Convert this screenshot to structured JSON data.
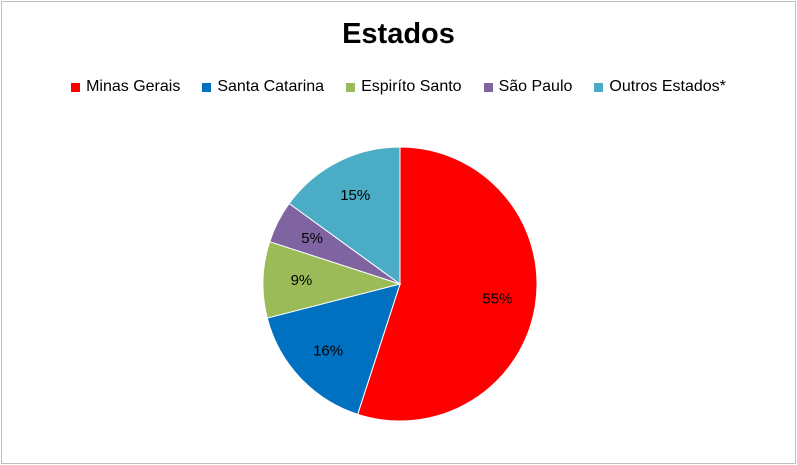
{
  "chart_data": {
    "type": "pie",
    "title": "Estados",
    "categories": [
      "Minas Gerais",
      "Santa Catarina",
      "Espiríto Santo",
      "São Paulo",
      "Outros Estados*"
    ],
    "values": [
      55,
      16,
      9,
      5,
      15
    ],
    "value_labels": [
      "55%",
      "16%",
      "9%",
      "5%",
      "15%"
    ],
    "colors": [
      "#ff0000",
      "#0070c0",
      "#9bbb59",
      "#8064a2",
      "#4bacc6"
    ],
    "legend": "top"
  }
}
